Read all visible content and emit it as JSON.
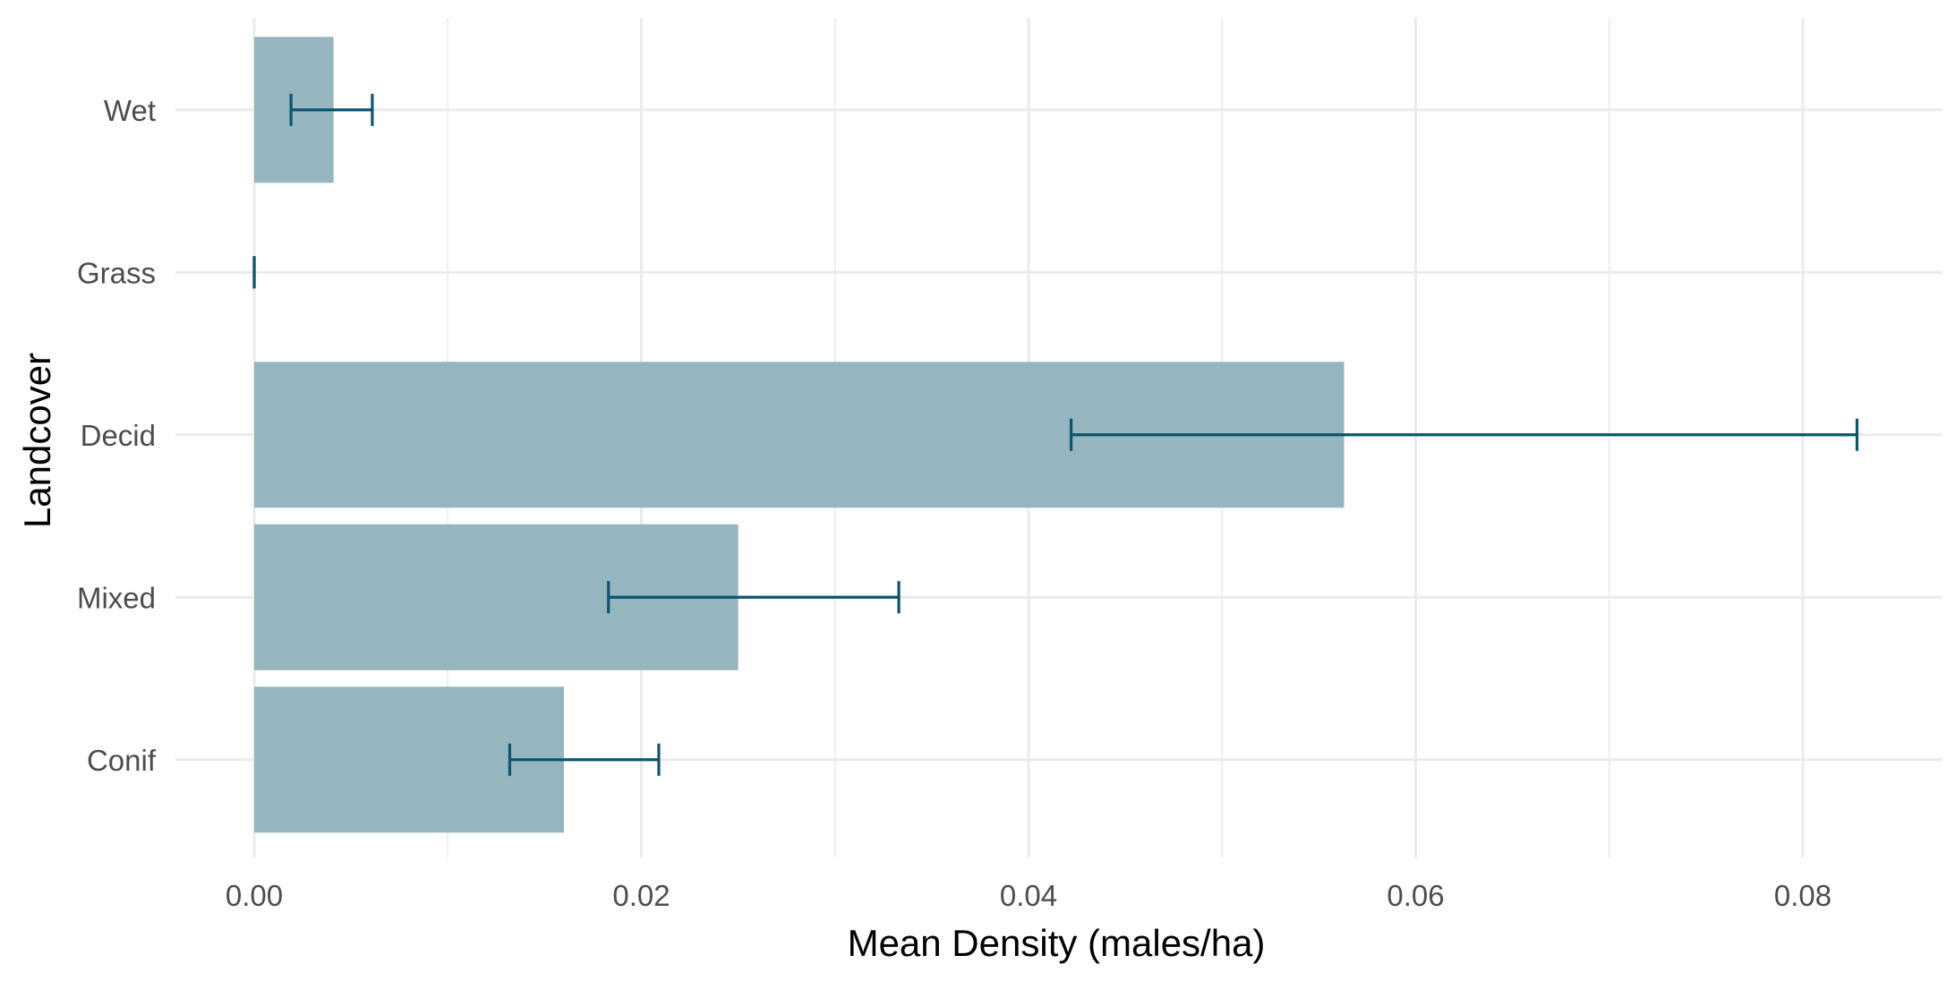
{
  "chart_data": {
    "type": "bar",
    "orientation": "horizontal",
    "title": "",
    "xlabel": "Mean Density (males/ha)",
    "ylabel": "Landcover",
    "categories": [
      "Conif",
      "Mixed",
      "Decid",
      "Grass",
      "Wet"
    ],
    "values": [
      0.016,
      0.025,
      0.0563,
      0.0,
      0.0041
    ],
    "error_bars": {
      "lower": [
        0.0132,
        0.0183,
        0.0422,
        0.0,
        0.0019
      ],
      "upper": [
        0.0209,
        0.0333,
        0.0828,
        0.0,
        0.0061
      ]
    },
    "xlim": [
      -0.004,
      0.087
    ],
    "x_ticks": [
      0.0,
      0.02,
      0.04,
      0.06,
      0.08
    ],
    "x_tick_labels": [
      "0.00",
      "0.02",
      "0.04",
      "0.06",
      "0.08"
    ],
    "grid": true,
    "legend": "none",
    "colors": {
      "bar": "#95b5bf",
      "error_bar": "#0b5572",
      "grid": "#ebebeb"
    }
  }
}
